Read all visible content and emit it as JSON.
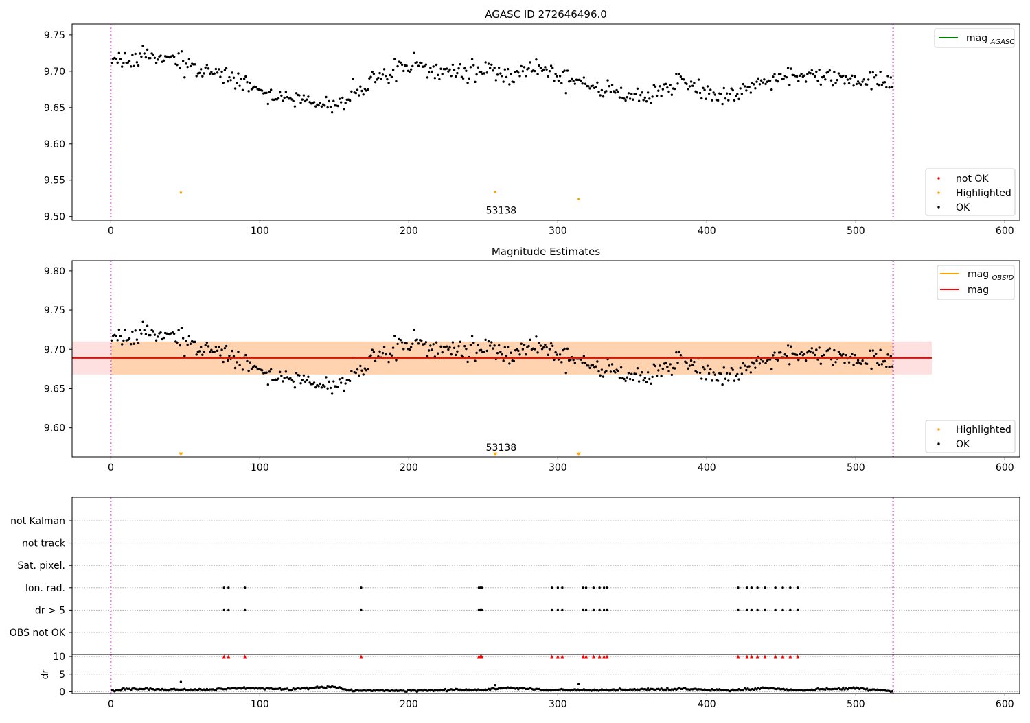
{
  "figure": {
    "id": "agasc-272646496-report"
  },
  "chart_data": [
    {
      "type": "scatter",
      "title": "AGASC ID 272646496.0",
      "xlabel": "",
      "ylabel": "",
      "xlim": [
        -26,
        610
      ],
      "ylim": [
        9.495,
        9.765
      ],
      "xticks": [
        0,
        100,
        200,
        300,
        400,
        500,
        600
      ],
      "yticks": [
        9.5,
        9.55,
        9.6,
        9.65,
        9.7,
        9.75
      ],
      "ytick_labels": [
        "9.50",
        "9.55",
        "9.60",
        "9.65",
        "9.70",
        "9.75"
      ],
      "vlines": [
        0,
        525
      ],
      "legend_lines": [
        {
          "label": "mag",
          "sub": "AGASC",
          "color": "#008000"
        }
      ],
      "legend_points": [
        {
          "label": "not OK",
          "color": "#ff0000"
        },
        {
          "label": "Highlighted",
          "color": "#ffa500"
        },
        {
          "label": "OK",
          "color": "#000000"
        }
      ],
      "annotations": [
        {
          "text": "53138",
          "x": 262,
          "y": 9.504
        }
      ],
      "series": [
        {
          "name": "Highlighted",
          "color": "#ffa500",
          "x": [
            47,
            258,
            314
          ],
          "y": [
            9.533,
            9.534,
            9.524
          ]
        },
        {
          "name": "OK",
          "color": "#000000",
          "generated_from_trend": true,
          "n": 525,
          "noise": 0.012,
          "trend": [
            [
              0,
              9.712
            ],
            [
              20,
              9.722
            ],
            [
              40,
              9.718
            ],
            [
              60,
              9.706
            ],
            [
              80,
              9.693
            ],
            [
              100,
              9.672
            ],
            [
              120,
              9.662
            ],
            [
              140,
              9.657
            ],
            [
              155,
              9.653
            ],
            [
              165,
              9.668
            ],
            [
              180,
              9.692
            ],
            [
              200,
              9.709
            ],
            [
              220,
              9.703
            ],
            [
              250,
              9.697
            ],
            [
              270,
              9.693
            ],
            [
              290,
              9.703
            ],
            [
              310,
              9.688
            ],
            [
              330,
              9.675
            ],
            [
              350,
              9.667
            ],
            [
              360,
              9.662
            ],
            [
              380,
              9.688
            ],
            [
              395,
              9.678
            ],
            [
              405,
              9.66
            ],
            [
              420,
              9.67
            ],
            [
              440,
              9.685
            ],
            [
              460,
              9.698
            ],
            [
              480,
              9.692
            ],
            [
              500,
              9.69
            ],
            [
              525,
              9.69
            ]
          ]
        }
      ]
    },
    {
      "type": "scatter",
      "title": "Magnitude Estimates",
      "xlabel": "",
      "ylabel": "",
      "xlim": [
        -26,
        610
      ],
      "ylim": [
        9.563,
        9.813
      ],
      "xticks": [
        0,
        100,
        200,
        300,
        400,
        500,
        600
      ],
      "yticks": [
        9.6,
        9.65,
        9.7,
        9.75,
        9.8
      ],
      "ytick_labels": [
        "9.60",
        "9.65",
        "9.70",
        "9.75",
        "9.80"
      ],
      "vlines": [
        0,
        525
      ],
      "mag": 9.689,
      "mag_band": [
        9.668,
        9.71
      ],
      "mag_band_range": [
        -26,
        551
      ],
      "obsid_band": [
        9.668,
        9.71
      ],
      "obsid_band_range": [
        0,
        525
      ],
      "legend_lines": [
        {
          "label": "mag",
          "sub": "OBSID",
          "color": "#ffa500"
        },
        {
          "label": "mag",
          "sub": "",
          "color": "#ff0000"
        }
      ],
      "legend_points": [
        {
          "label": "Highlighted",
          "color": "#ffa500"
        },
        {
          "label": "OK",
          "color": "#000000"
        }
      ],
      "annotations": [
        {
          "text": "53138",
          "x": 262,
          "y": 9.571
        }
      ],
      "series": [
        {
          "name": "Highlighted",
          "color": "#ffa500",
          "marker": "triangle-down",
          "x": [
            47,
            258,
            314
          ],
          "y": [
            9.566,
            9.566,
            9.566
          ]
        },
        {
          "name": "OK",
          "color": "#000000",
          "same_as_panel": 0
        }
      ]
    },
    {
      "type": "scatter",
      "title": "",
      "xlabel": "",
      "ylabel": "",
      "xlim": [
        -26,
        610
      ],
      "vlines": [
        0,
        525
      ],
      "flag_rows": [
        "not Kalman",
        "not track",
        "Sat. pixel.",
        "Ion. rad.",
        "dr > 5",
        "OBS not OK"
      ],
      "flag_x": [
        76,
        79,
        90,
        168,
        247,
        248,
        249,
        296,
        300,
        303,
        317,
        319,
        324,
        328,
        331,
        333,
        421,
        427,
        430,
        434,
        439,
        446,
        451,
        456,
        461
      ],
      "flagged_rows": [
        "Ion. rad.",
        "dr > 5"
      ]
    },
    {
      "type": "scatter",
      "title": "",
      "xlabel": "",
      "ylabel": "dr",
      "xlim": [
        -26,
        610
      ],
      "ylim": [
        -0.5,
        10.6
      ],
      "yticks": [
        0,
        5,
        10
      ],
      "ytick_labels": [
        "0",
        "5",
        "10"
      ],
      "vlines": [
        0,
        525
      ],
      "clipped_marker_y": 10,
      "clipped_color": "#ff0000",
      "series": [
        {
          "name": "dr",
          "color": "#000000",
          "generated_from_trend": true,
          "n": 525,
          "noise": 0.25,
          "trend": [
            [
              0,
              0.3
            ],
            [
              10,
              0.8
            ],
            [
              30,
              0.7
            ],
            [
              60,
              0.5
            ],
            [
              90,
              1.1
            ],
            [
              120,
              0.7
            ],
            [
              150,
              1.5
            ],
            [
              160,
              0.4
            ],
            [
              200,
              0.3
            ],
            [
              250,
              0.6
            ],
            [
              265,
              1.0
            ],
            [
              290,
              0.6
            ],
            [
              330,
              0.5
            ],
            [
              380,
              0.8
            ],
            [
              420,
              0.4
            ],
            [
              440,
              1.1
            ],
            [
              460,
              0.4
            ],
            [
              500,
              1.0
            ],
            [
              525,
              0.2
            ]
          ],
          "extras": [
            [
              47,
              2.8
            ],
            [
              258,
              1.9
            ],
            [
              314,
              2.2
            ]
          ]
        }
      ]
    }
  ]
}
